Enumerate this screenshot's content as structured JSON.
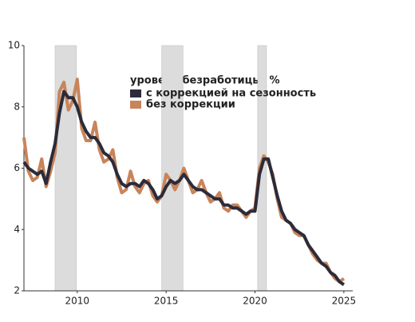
{
  "chart_data": {
    "type": "line",
    "legend_title": "уровень безработицы, %",
    "x": [
      2007,
      2007.25,
      2007.5,
      2007.75,
      2008,
      2008.25,
      2008.5,
      2008.75,
      2009,
      2009.25,
      2009.5,
      2009.75,
      2010,
      2010.25,
      2010.5,
      2010.75,
      2011,
      2011.25,
      2011.5,
      2011.75,
      2012,
      2012.25,
      2012.5,
      2012.75,
      2013,
      2013.25,
      2013.5,
      2013.75,
      2014,
      2014.25,
      2014.5,
      2014.75,
      2015,
      2015.25,
      2015.5,
      2015.75,
      2016,
      2016.25,
      2016.5,
      2016.75,
      2017,
      2017.25,
      2017.5,
      2017.75,
      2018,
      2018.25,
      2018.5,
      2018.75,
      2019,
      2019.25,
      2019.5,
      2019.75,
      2020,
      2020.25,
      2020.5,
      2020.75,
      2021,
      2021.25,
      2021.5,
      2021.75,
      2022,
      2022.25,
      2022.5,
      2022.75,
      2023,
      2023.25,
      2023.5,
      2023.75,
      2024,
      2024.25,
      2024.5,
      2024.75,
      2025
    ],
    "series": [
      {
        "name": "без коррекции",
        "color": "#c8845a",
        "values": [
          7.0,
          5.9,
          5.6,
          5.7,
          6.3,
          5.4,
          5.9,
          6.5,
          8.5,
          8.8,
          7.9,
          8.2,
          8.9,
          7.3,
          6.9,
          6.9,
          7.5,
          6.6,
          6.2,
          6.3,
          6.6,
          5.7,
          5.2,
          5.3,
          5.9,
          5.4,
          5.2,
          5.5,
          5.6,
          5.1,
          4.9,
          5.1,
          5.8,
          5.6,
          5.3,
          5.6,
          6.0,
          5.6,
          5.2,
          5.3,
          5.6,
          5.2,
          4.9,
          5.0,
          5.2,
          4.7,
          4.6,
          4.8,
          4.8,
          4.6,
          4.4,
          4.6,
          4.7,
          6.0,
          6.4,
          6.2,
          5.8,
          5.0,
          4.4,
          4.3,
          4.2,
          3.9,
          3.8,
          3.8,
          3.5,
          3.2,
          3.0,
          2.9,
          2.9,
          2.6,
          2.4,
          2.3,
          2.4
        ]
      },
      {
        "name": "с коррекцией на сезонность",
        "color": "#2b2b3a",
        "values": [
          6.2,
          6.0,
          5.9,
          5.8,
          5.9,
          5.5,
          6.2,
          6.8,
          7.8,
          8.5,
          8.3,
          8.3,
          8.0,
          7.5,
          7.2,
          7.0,
          7.0,
          6.8,
          6.5,
          6.4,
          6.2,
          5.8,
          5.5,
          5.4,
          5.5,
          5.5,
          5.4,
          5.6,
          5.5,
          5.3,
          5.0,
          5.1,
          5.4,
          5.6,
          5.5,
          5.6,
          5.8,
          5.6,
          5.4,
          5.3,
          5.3,
          5.2,
          5.1,
          5.0,
          5.0,
          4.8,
          4.8,
          4.7,
          4.7,
          4.6,
          4.5,
          4.6,
          4.6,
          5.8,
          6.3,
          6.3,
          5.7,
          5.1,
          4.6,
          4.3,
          4.2,
          4.0,
          3.9,
          3.8,
          3.5,
          3.3,
          3.1,
          2.9,
          2.8,
          2.6,
          2.5,
          2.3,
          2.2
        ]
      }
    ],
    "highlight_ranges": [
      [
        2008.75,
        2009.95
      ],
      [
        2014.75,
        2015.95
      ],
      [
        2020.15,
        2020.65
      ]
    ],
    "highlight_color": "#dcdcdc",
    "xlim": [
      2007,
      2025.5
    ],
    "xticks": [
      2010,
      2015,
      2020,
      2025
    ],
    "ylim": [
      2,
      10
    ],
    "yticks": [
      2,
      4,
      6,
      8,
      10
    ]
  }
}
